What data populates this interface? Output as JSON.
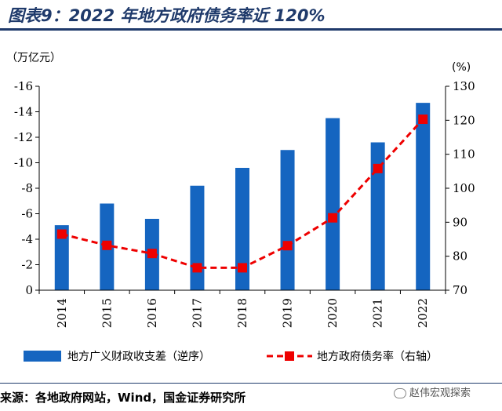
{
  "header": {
    "title": "图表9：2022 年地方政府债务率近 120%"
  },
  "chart_data": {
    "type": "bar",
    "categories": [
      "2014",
      "2015",
      "2016",
      "2017",
      "2018",
      "2019",
      "2020",
      "2021",
      "2022"
    ],
    "series": [
      {
        "name": "地方广义财政收支差（逆序）",
        "type": "bar",
        "axis": "left",
        "color": "#1565c0",
        "values": [
          -5.1,
          -6.8,
          -5.6,
          -8.2,
          -9.6,
          -11.0,
          -13.5,
          -11.6,
          -14.7
        ]
      },
      {
        "name": "地方政府债务率（右轴）",
        "type": "line",
        "axis": "right",
        "color": "#ee0000",
        "values": [
          86.5,
          83.2,
          80.8,
          76.6,
          76.6,
          83.1,
          91.3,
          105.8,
          120.3
        ]
      }
    ],
    "left_axis": {
      "unit": "（万亿元）",
      "min": 0,
      "max": -16,
      "step": -2,
      "reversed": true,
      "ticks": [
        "0",
        "-2",
        "-4",
        "-6",
        "-8",
        "-10",
        "-12",
        "-14",
        "-16"
      ]
    },
    "right_axis": {
      "unit": "(%)",
      "min": 70,
      "max": 130,
      "step": 10,
      "ticks": [
        "70",
        "80",
        "90",
        "100",
        "110",
        "120",
        "130"
      ]
    },
    "grid": false,
    "legend_placement": "bottom"
  },
  "footer": {
    "source": "来源：各地政府网站，Wind，国金证券研究所",
    "watermark": "赵伟宏观探索"
  }
}
